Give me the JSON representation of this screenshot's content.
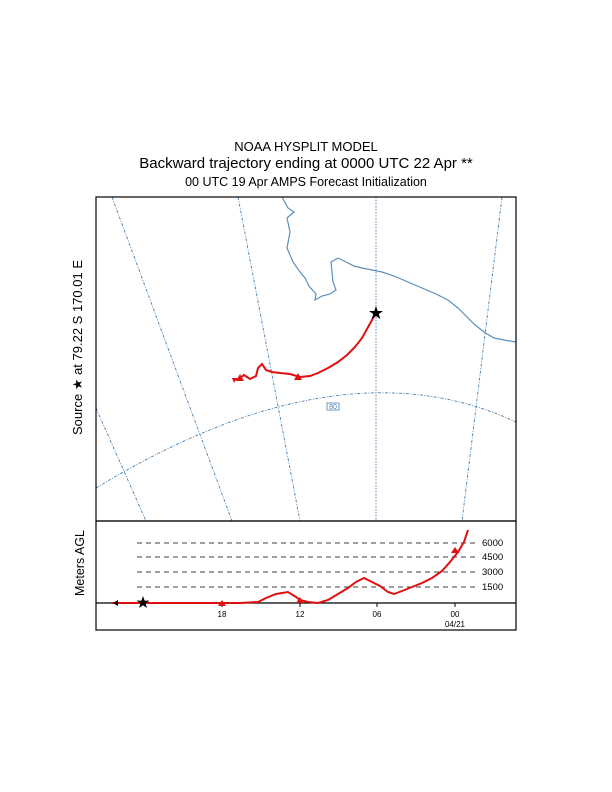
{
  "header": {
    "line1": "NOAA HYSPLIT MODEL",
    "line2": "Backward trajectory ending at 0000 UTC 22 Apr **",
    "line3": "00 UTC 19 Apr    AMPS  Forecast Initialization"
  },
  "map": {
    "source_label": "Source ★ at   79.22 S  170.01 E",
    "latitude_label": "80",
    "colors": {
      "coast": "#5b8fbd",
      "grid": "#4a7fb0",
      "trajectory": "#e01010"
    }
  },
  "vertical_panel": {
    "ylabel": "Meters AGL",
    "height_levels": [
      "6000",
      "4500",
      "3000",
      "1500"
    ],
    "time_ticks": [
      "18",
      "12",
      "06",
      "00"
    ],
    "date_label": "04/21"
  }
}
